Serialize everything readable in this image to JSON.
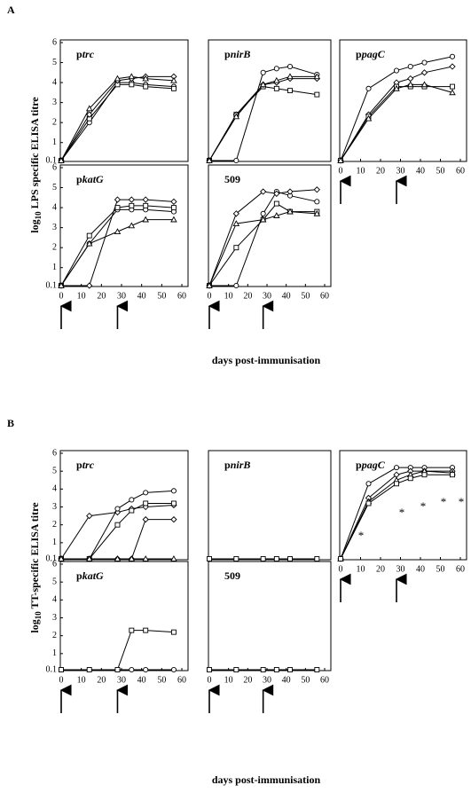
{
  "figures": [
    {
      "label": "A",
      "y_label": {
        "base": "log",
        "sub": "10",
        "text": "LPS specific ELISA titre"
      },
      "x_label": "days post-immunisation"
    },
    {
      "label": "B",
      "y_label": {
        "base": "log",
        "sub": "10",
        "text": "TT-specific ELISA titre"
      },
      "x_label": "days post-immunisation"
    }
  ],
  "chart_data": [
    {
      "type": "line",
      "title": "ptrc",
      "x": [
        0,
        14,
        28,
        35,
        42,
        56
      ],
      "xlim": [
        0,
        60
      ],
      "ylim": [
        0.1,
        6
      ],
      "yticks": [
        0.1,
        1,
        2,
        3,
        4,
        5,
        6
      ],
      "series": [
        {
          "marker": "circle",
          "color": "#000000",
          "values": [
            0.1,
            2.0,
            4.0,
            4.0,
            3.9,
            3.8
          ]
        },
        {
          "marker": "square",
          "color": "#000000",
          "values": [
            0.1,
            2.2,
            3.9,
            3.9,
            3.8,
            3.7
          ]
        },
        {
          "marker": "diamond",
          "color": "#000000",
          "values": [
            0.1,
            2.4,
            4.1,
            4.2,
            4.3,
            4.3
          ]
        },
        {
          "marker": "triangle",
          "color": "#000000",
          "values": [
            0.1,
            2.7,
            4.2,
            4.3,
            4.2,
            4.1
          ]
        }
      ]
    },
    {
      "type": "line",
      "title": "pnirB",
      "x": [
        0,
        14,
        28,
        35,
        42,
        56
      ],
      "xlim": [
        0,
        60
      ],
      "ylim": [
        0.1,
        6
      ],
      "series": [
        {
          "marker": "circle",
          "color": "#000000",
          "values": [
            0.1,
            0.1,
            4.5,
            4.7,
            4.8,
            4.4
          ]
        },
        {
          "marker": "square",
          "color": "#000000",
          "values": [
            0.1,
            2.4,
            3.8,
            3.7,
            3.6,
            3.4
          ]
        },
        {
          "marker": "diamond",
          "color": "#000000",
          "values": [
            0.1,
            2.4,
            3.9,
            4.0,
            4.2,
            4.2
          ]
        },
        {
          "marker": "triangle",
          "color": "#000000",
          "values": [
            0.1,
            2.3,
            3.9,
            4.1,
            4.3,
            4.3
          ]
        }
      ]
    },
    {
      "type": "line",
      "title": "ppagC",
      "x": [
        0,
        14,
        28,
        35,
        42,
        56
      ],
      "xlim": [
        0,
        60
      ],
      "ylim": [
        0.1,
        6
      ],
      "xticks": [
        0,
        10,
        20,
        30,
        40,
        50,
        60
      ],
      "arrows": [
        0,
        28
      ],
      "series": [
        {
          "marker": "circle",
          "color": "#000000",
          "values": [
            0.1,
            3.7,
            4.6,
            4.8,
            5.0,
            5.3
          ]
        },
        {
          "marker": "diamond",
          "color": "#000000",
          "values": [
            0.1,
            2.4,
            4.0,
            4.2,
            4.5,
            4.8
          ]
        },
        {
          "marker": "square",
          "color": "#000000",
          "values": [
            0.1,
            2.3,
            3.8,
            3.8,
            3.8,
            3.8
          ]
        },
        {
          "marker": "triangle",
          "color": "#000000",
          "values": [
            0.1,
            2.2,
            3.7,
            3.9,
            3.9,
            3.5
          ]
        }
      ]
    },
    {
      "type": "line",
      "title": "pkatG",
      "x": [
        0,
        14,
        28,
        35,
        42,
        56
      ],
      "xlim": [
        0,
        60
      ],
      "ylim": [
        0.1,
        6
      ],
      "yticks": [
        0.1,
        1,
        2,
        3,
        4,
        5,
        6
      ],
      "xticks": [
        0,
        10,
        20,
        30,
        40,
        50,
        60
      ],
      "arrows": [
        0,
        28
      ],
      "series": [
        {
          "marker": "circle",
          "color": "#000000",
          "values": [
            0.1,
            2.2,
            3.9,
            3.9,
            3.9,
            3.8
          ]
        },
        {
          "marker": "square",
          "color": "#000000",
          "values": [
            0.1,
            2.6,
            4.0,
            4.1,
            4.1,
            4.0
          ]
        },
        {
          "marker": "diamond",
          "color": "#000000",
          "values": [
            0.1,
            0.1,
            4.4,
            4.4,
            4.4,
            4.3
          ]
        },
        {
          "marker": "triangle",
          "color": "#000000",
          "values": [
            0.1,
            2.2,
            2.8,
            3.1,
            3.4,
            3.4
          ]
        }
      ]
    },
    {
      "type": "line",
      "title": "509",
      "x": [
        0,
        14,
        28,
        35,
        42,
        56
      ],
      "xlim": [
        0,
        60
      ],
      "ylim": [
        0.1,
        6
      ],
      "xticks": [
        0,
        10,
        20,
        30,
        40,
        50,
        60
      ],
      "arrows": [
        0,
        28
      ],
      "series": [
        {
          "marker": "circle",
          "color": "#000000",
          "values": [
            0.1,
            0.1,
            3.7,
            4.8,
            4.6,
            4.3
          ]
        },
        {
          "marker": "square",
          "color": "#000000",
          "values": [
            0.1,
            2.0,
            3.4,
            4.2,
            3.8,
            3.8
          ]
        },
        {
          "marker": "diamond",
          "color": "#000000",
          "values": [
            0.1,
            3.7,
            4.8,
            4.7,
            4.8,
            4.9
          ]
        },
        {
          "marker": "triangle",
          "color": "#000000",
          "values": [
            0.1,
            3.2,
            3.4,
            3.6,
            3.8,
            3.7
          ]
        }
      ]
    },
    {
      "type": "line",
      "title": "ptrc",
      "x": [
        0,
        14,
        28,
        35,
        42,
        56
      ],
      "xlim": [
        0,
        60
      ],
      "ylim": [
        0.1,
        6
      ],
      "yticks": [
        0.1,
        1,
        2,
        3,
        4,
        5,
        6
      ],
      "series": [
        {
          "marker": "diamond",
          "color": "#000000",
          "values": [
            0.1,
            2.5,
            2.7,
            2.9,
            3.0,
            3.1
          ]
        },
        {
          "marker": "circle",
          "color": "#000000",
          "values": [
            0.1,
            0.1,
            2.9,
            3.4,
            3.8,
            3.9
          ]
        },
        {
          "marker": "square",
          "color": "#000000",
          "values": [
            0.1,
            0.1,
            2.0,
            2.8,
            3.2,
            3.2
          ]
        },
        {
          "marker": "diamond",
          "color": "#000000",
          "values": [
            0.1,
            0.1,
            0.1,
            0.1,
            2.3,
            2.3
          ]
        },
        {
          "marker": "triangle",
          "color": "#000000",
          "values": [
            0.1,
            0.1,
            0.1,
            0.1,
            0.1,
            0.1
          ]
        }
      ]
    },
    {
      "type": "line",
      "title": "pnirB",
      "x": [
        0,
        14,
        28,
        35,
        42,
        56
      ],
      "xlim": [
        0,
        60
      ],
      "ylim": [
        0.1,
        6
      ],
      "series": [
        {
          "marker": "square",
          "color": "#000000",
          "values": [
            0.1,
            0.1,
            0.1,
            0.1,
            0.1,
            0.1
          ]
        }
      ]
    },
    {
      "type": "line",
      "title": "ppagC",
      "x": [
        0,
        14,
        28,
        35,
        42,
        56
      ],
      "xlim": [
        0,
        60
      ],
      "ylim": [
        0.1,
        6
      ],
      "xticks": [
        0,
        10,
        20,
        30,
        40,
        50,
        60
      ],
      "arrows": [
        0,
        28
      ],
      "annotations": [
        "*",
        "*",
        "*",
        "*",
        "*"
      ],
      "series": [
        {
          "marker": "circle",
          "color": "#000000",
          "values": [
            0.1,
            4.3,
            5.2,
            5.2,
            5.2,
            5.2
          ]
        },
        {
          "marker": "diamond",
          "color": "#000000",
          "values": [
            0.1,
            3.5,
            4.8,
            5.0,
            5.0,
            5.0
          ]
        },
        {
          "marker": "triangle",
          "color": "#000000",
          "values": [
            0.1,
            3.3,
            4.5,
            4.8,
            5.0,
            4.9
          ]
        },
        {
          "marker": "square",
          "color": "#000000",
          "values": [
            0.1,
            3.2,
            4.3,
            4.6,
            4.8,
            4.8
          ]
        }
      ]
    },
    {
      "type": "line",
      "title": "pkatG",
      "x": [
        0,
        14,
        28,
        35,
        42,
        56
      ],
      "xlim": [
        0,
        60
      ],
      "ylim": [
        0.1,
        6
      ],
      "yticks": [
        0.1,
        1,
        2,
        3,
        4,
        5,
        6
      ],
      "xticks": [
        0,
        10,
        20,
        30,
        40,
        50,
        60
      ],
      "arrows": [
        0,
        28
      ],
      "series": [
        {
          "marker": "circle",
          "color": "#000000",
          "values": [
            0.1,
            0.1,
            0.1,
            0.1,
            0.1,
            0.1
          ]
        },
        {
          "marker": "square",
          "color": "#000000",
          "values": [
            0.1,
            0.1,
            0.1,
            2.3,
            2.3,
            2.2
          ]
        }
      ]
    },
    {
      "type": "line",
      "title": "509",
      "x": [
        0,
        14,
        28,
        35,
        42,
        56
      ],
      "xlim": [
        0,
        60
      ],
      "ylim": [
        0.1,
        6
      ],
      "xticks": [
        0,
        10,
        20,
        30,
        40,
        50,
        60
      ],
      "arrows": [
        0,
        28
      ],
      "series": [
        {
          "marker": "square",
          "color": "#000000",
          "values": [
            0.1,
            0.1,
            0.1,
            0.1,
            0.1,
            0.1
          ]
        }
      ]
    }
  ]
}
